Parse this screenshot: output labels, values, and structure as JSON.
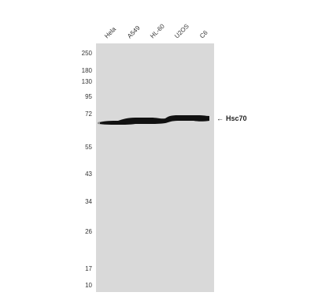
{
  "lanes": [
    "Hela",
    "A549",
    "HL-60",
    "U2OS",
    "C6"
  ],
  "markers": [
    "250",
    "180",
    "130",
    "95",
    "72",
    "55",
    "43",
    "34",
    "26",
    "17",
    "10"
  ],
  "target": {
    "label": "Hsc70",
    "arrow": "←"
  },
  "colors": {
    "membrane": "#d9d9d9",
    "band": "#111111",
    "text": "#333333"
  }
}
